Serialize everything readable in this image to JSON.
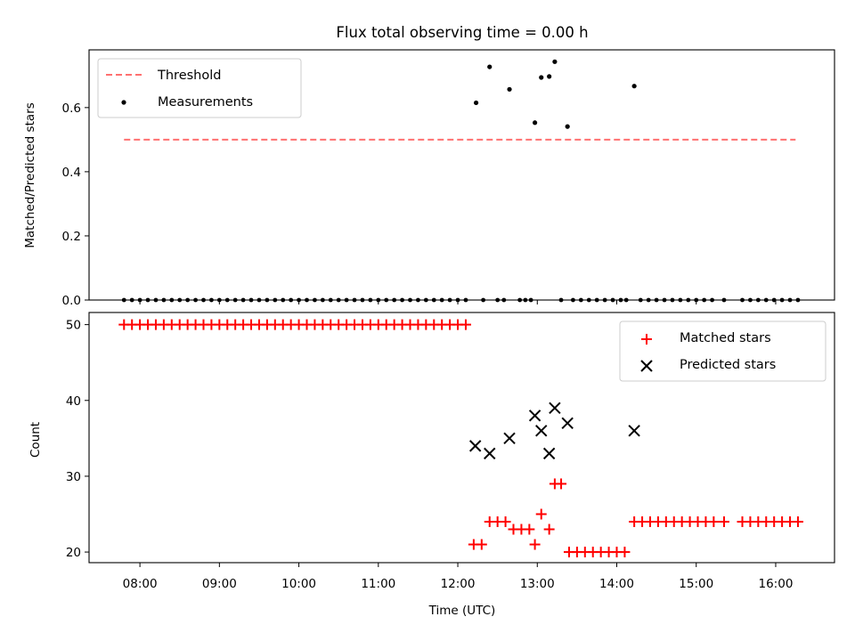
{
  "title": "Flux total observing time = 0.00 h",
  "colors": {
    "threshold": "#ff7070",
    "measurement": "#000000",
    "matched": "#ff0000",
    "predicted": "#000000"
  },
  "chart_data": [
    {
      "name": "ratio-panel",
      "type": "scatter",
      "ylabel": "Matched/Predicted stars",
      "xlim": [
        7.36,
        16.74
      ],
      "ylim": [
        0.0,
        0.78
      ],
      "yticks": [
        0.0,
        0.2,
        0.4,
        0.6
      ],
      "ytick_labels": [
        "0.0",
        "0.2",
        "0.4",
        "0.6"
      ],
      "legend": {
        "position": "top-left",
        "entries": [
          "Threshold",
          "Measurements"
        ]
      },
      "threshold": {
        "label": "Threshold",
        "value": 0.5,
        "x_range": [
          7.8,
          16.25
        ]
      },
      "measurements": {
        "label": "Measurements",
        "points": [
          [
            12.23,
            0.615
          ],
          [
            12.4,
            0.727
          ],
          [
            12.65,
            0.657
          ],
          [
            12.97,
            0.553
          ],
          [
            13.05,
            0.694
          ],
          [
            13.15,
            0.697
          ],
          [
            13.22,
            0.743
          ],
          [
            13.38,
            0.541
          ],
          [
            14.22,
            0.667
          ]
        ],
        "zero_x": [
          7.8,
          7.9,
          8.0,
          8.1,
          8.2,
          8.3,
          8.4,
          8.5,
          8.6,
          8.7,
          8.8,
          8.9,
          9.0,
          9.1,
          9.2,
          9.3,
          9.4,
          9.5,
          9.6,
          9.7,
          9.8,
          9.9,
          10.0,
          10.1,
          10.2,
          10.3,
          10.4,
          10.5,
          10.6,
          10.7,
          10.8,
          10.9,
          11.0,
          11.1,
          11.2,
          11.3,
          11.4,
          11.5,
          11.6,
          11.7,
          11.8,
          11.9,
          12.0,
          12.1,
          12.32,
          12.5,
          12.58,
          12.78,
          12.85,
          12.92,
          13.3,
          13.45,
          13.55,
          13.65,
          13.75,
          13.85,
          13.95,
          14.05,
          14.12,
          14.3,
          14.4,
          14.5,
          14.6,
          14.7,
          14.8,
          14.9,
          15.0,
          15.1,
          15.2,
          15.35,
          15.58,
          15.68,
          15.78,
          15.88,
          15.98,
          16.08,
          16.18,
          16.28
        ]
      }
    },
    {
      "name": "count-panel",
      "type": "scatter",
      "xlabel": "Time (UTC)",
      "ylabel": "Count",
      "xlim": [
        7.36,
        16.74
      ],
      "ylim": [
        18.6,
        51.6
      ],
      "yticks": [
        20,
        30,
        40,
        50
      ],
      "ytick_labels": [
        "20",
        "30",
        "40",
        "50"
      ],
      "xticks": [
        8,
        9,
        10,
        11,
        12,
        13,
        14,
        15,
        16
      ],
      "xtick_labels": [
        "08:00",
        "09:00",
        "10:00",
        "11:00",
        "12:00",
        "13:00",
        "14:00",
        "15:00",
        "16:00"
      ],
      "legend": {
        "position": "top-right",
        "entries": [
          "Matched stars",
          "Predicted stars"
        ]
      },
      "matched": {
        "label": "Matched stars",
        "points": [
          [
            7.8,
            50
          ],
          [
            7.9,
            50
          ],
          [
            8.0,
            50
          ],
          [
            8.1,
            50
          ],
          [
            8.2,
            50
          ],
          [
            8.3,
            50
          ],
          [
            8.4,
            50
          ],
          [
            8.5,
            50
          ],
          [
            8.6,
            50
          ],
          [
            8.7,
            50
          ],
          [
            8.8,
            50
          ],
          [
            8.9,
            50
          ],
          [
            9.0,
            50
          ],
          [
            9.1,
            50
          ],
          [
            9.2,
            50
          ],
          [
            9.3,
            50
          ],
          [
            9.4,
            50
          ],
          [
            9.5,
            50
          ],
          [
            9.6,
            50
          ],
          [
            9.7,
            50
          ],
          [
            9.8,
            50
          ],
          [
            9.9,
            50
          ],
          [
            10.0,
            50
          ],
          [
            10.1,
            50
          ],
          [
            10.2,
            50
          ],
          [
            10.3,
            50
          ],
          [
            10.4,
            50
          ],
          [
            10.5,
            50
          ],
          [
            10.6,
            50
          ],
          [
            10.7,
            50
          ],
          [
            10.8,
            50
          ],
          [
            10.9,
            50
          ],
          [
            11.0,
            50
          ],
          [
            11.1,
            50
          ],
          [
            11.2,
            50
          ],
          [
            11.3,
            50
          ],
          [
            11.4,
            50
          ],
          [
            11.5,
            50
          ],
          [
            11.6,
            50
          ],
          [
            11.7,
            50
          ],
          [
            11.8,
            50
          ],
          [
            11.9,
            50
          ],
          [
            12.0,
            50
          ],
          [
            12.1,
            50
          ],
          [
            12.2,
            21
          ],
          [
            12.3,
            21
          ],
          [
            12.4,
            24
          ],
          [
            12.5,
            24
          ],
          [
            12.6,
            24
          ],
          [
            12.7,
            23
          ],
          [
            12.8,
            23
          ],
          [
            12.9,
            23
          ],
          [
            12.97,
            21
          ],
          [
            13.05,
            25
          ],
          [
            13.15,
            23
          ],
          [
            13.22,
            29
          ],
          [
            13.3,
            29
          ],
          [
            13.4,
            20
          ],
          [
            13.5,
            20
          ],
          [
            13.6,
            20
          ],
          [
            13.7,
            20
          ],
          [
            13.8,
            20
          ],
          [
            13.9,
            20
          ],
          [
            14.0,
            20
          ],
          [
            14.1,
            20
          ],
          [
            14.22,
            24
          ],
          [
            14.32,
            24
          ],
          [
            14.42,
            24
          ],
          [
            14.52,
            24
          ],
          [
            14.62,
            24
          ],
          [
            14.72,
            24
          ],
          [
            14.82,
            24
          ],
          [
            14.92,
            24
          ],
          [
            15.02,
            24
          ],
          [
            15.12,
            24
          ],
          [
            15.22,
            24
          ],
          [
            15.35,
            24
          ],
          [
            15.58,
            24
          ],
          [
            15.68,
            24
          ],
          [
            15.78,
            24
          ],
          [
            15.88,
            24
          ],
          [
            15.98,
            24
          ],
          [
            16.08,
            24
          ],
          [
            16.18,
            24
          ],
          [
            16.28,
            24
          ]
        ]
      },
      "predicted": {
        "label": "Predicted stars",
        "points": [
          [
            12.22,
            34
          ],
          [
            12.4,
            33
          ],
          [
            12.65,
            35
          ],
          [
            12.97,
            38
          ],
          [
            13.05,
            36
          ],
          [
            13.15,
            33
          ],
          [
            13.22,
            39
          ],
          [
            13.38,
            37
          ],
          [
            14.22,
            36
          ]
        ]
      }
    }
  ]
}
